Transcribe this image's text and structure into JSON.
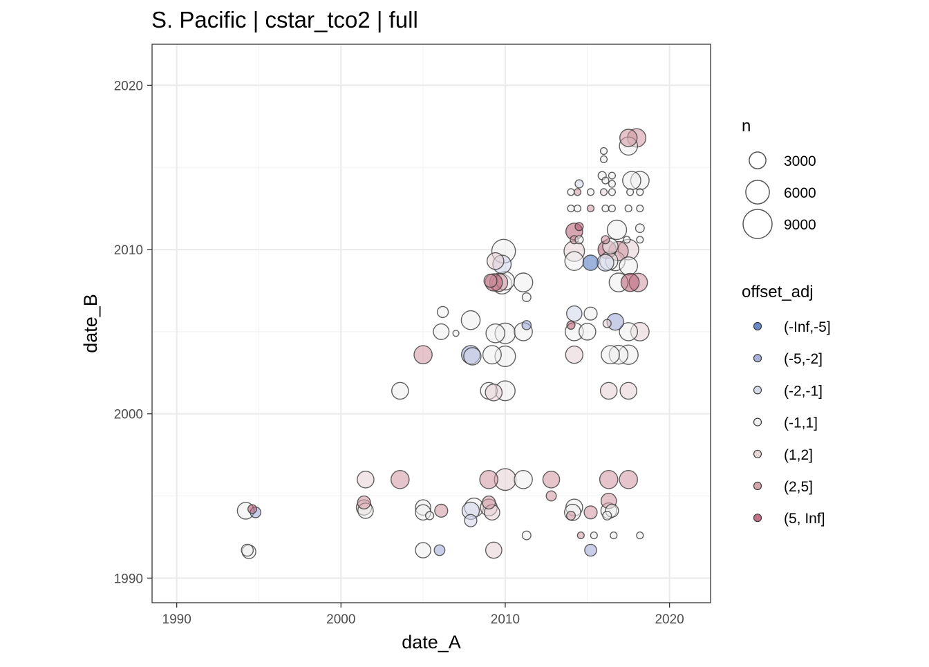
{
  "chart_data": {
    "type": "scatter",
    "title": "S. Pacific | cstar_tco2 | full",
    "xlabel": "date_A",
    "ylabel": "date_B",
    "xlim": [
      1988.5,
      2022.5
    ],
    "ylim": [
      1988.5,
      2022.5
    ],
    "xticks": [
      "1990",
      "2000",
      "2010",
      "2020"
    ],
    "yticks": [
      "1990",
      "2000",
      "2010",
      "2020"
    ],
    "grid": true,
    "size_legend": {
      "title": "n",
      "entries": [
        {
          "label": "3000",
          "value": 3000
        },
        {
          "label": "6000",
          "value": 6000
        },
        {
          "label": "9000",
          "value": 9000
        }
      ]
    },
    "color_legend": {
      "title": "offset_adj",
      "entries": [
        {
          "label": "(-Inf,-5]",
          "color": "#4f74c0"
        },
        {
          "label": "(-5,-2]",
          "color": "#9aa5d3"
        },
        {
          "label": "(-2,-1]",
          "color": "#d0d4e8"
        },
        {
          "label": "(-1,1]",
          "color": "#eeeeee"
        },
        {
          "label": "(1,2]",
          "color": "#e6d0d4"
        },
        {
          "label": "(2,5]",
          "color": "#cf96a1"
        },
        {
          "label": "(5, Inf]",
          "color": "#b75b72"
        }
      ]
    },
    "points": [
      [
        1994.3,
        1991.7,
        1500,
        3
      ],
      [
        1994.4,
        1991.6,
        2000,
        3
      ],
      [
        1994.2,
        1994.1,
        3000,
        3
      ],
      [
        1994.6,
        1994.2,
        800,
        6
      ],
      [
        1994.8,
        1994.0,
        1200,
        1
      ],
      [
        2001.5,
        1996.0,
        3000,
        4
      ],
      [
        2001.4,
        1994.6,
        1800,
        5
      ],
      [
        2001.4,
        1994.3,
        2500,
        4
      ],
      [
        2001.5,
        1994.1,
        2500,
        3
      ],
      [
        2003.6,
        1996.0,
        3500,
        5
      ],
      [
        2003.6,
        2001.4,
        3000,
        3
      ],
      [
        2005.0,
        2003.6,
        3500,
        5
      ],
      [
        2005.0,
        1994.3,
        2500,
        3
      ],
      [
        2005.0,
        1994.0,
        2500,
        3
      ],
      [
        2005.4,
        1993.8,
        700,
        3
      ],
      [
        2005.0,
        1991.7,
        2500,
        3
      ],
      [
        2006.0,
        1991.7,
        1200,
        1
      ],
      [
        2006.1,
        1994.1,
        1800,
        5
      ],
      [
        2006.2,
        2006.2,
        1300,
        3
      ],
      [
        2006.1,
        2005.0,
        2600,
        3
      ],
      [
        2007.0,
        2004.9,
        400,
        3
      ],
      [
        2007.9,
        2005.7,
        3800,
        3
      ],
      [
        2007.9,
        2003.6,
        3600,
        1
      ],
      [
        2008.0,
        2003.5,
        3200,
        2
      ],
      [
        2007.9,
        1994.1,
        3200,
        2
      ],
      [
        2008.1,
        1994.3,
        3800,
        3
      ],
      [
        2007.9,
        1993.5,
        1600,
        2
      ],
      [
        2009.0,
        1996.0,
        3500,
        5
      ],
      [
        2009.0,
        1994.6,
        1800,
        5
      ],
      [
        2009.0,
        1994.3,
        3000,
        4
      ],
      [
        2009.2,
        1994.0,
        2500,
        4
      ],
      [
        2009.3,
        1991.7,
        2800,
        4
      ],
      [
        2009.0,
        2001.4,
        3000,
        3
      ],
      [
        2009.3,
        2001.3,
        3000,
        4
      ],
      [
        2009.2,
        2003.6,
        3600,
        3
      ],
      [
        2009.4,
        2004.9,
        3800,
        3
      ],
      [
        2009.4,
        2009.3,
        3000,
        4
      ],
      [
        2009.1,
        2008.1,
        1800,
        5
      ],
      [
        2009.3,
        2008.0,
        3200,
        6
      ],
      [
        2009.6,
        2008.0,
        3500,
        5
      ],
      [
        2009.8,
        2007.9,
        4200,
        3
      ],
      [
        2010.0,
        2008.1,
        3600,
        3
      ],
      [
        2009.8,
        2009.1,
        3600,
        2
      ],
      [
        2009.9,
        2009.9,
        6000,
        3
      ],
      [
        2010.0,
        2003.5,
        4500,
        3
      ],
      [
        2010.0,
        2004.9,
        4500,
        3
      ],
      [
        2010.0,
        2001.4,
        4200,
        3
      ],
      [
        2010.0,
        1996.0,
        5000,
        4
      ],
      [
        2011.1,
        1996.0,
        3500,
        3
      ],
      [
        2011.1,
        2008.0,
        3800,
        3
      ],
      [
        2011.3,
        2007.1,
        800,
        3
      ],
      [
        2011.1,
        2005.0,
        3500,
        3
      ],
      [
        2011.3,
        2005.4,
        900,
        1
      ],
      [
        2011.3,
        1992.6,
        800,
        3
      ],
      [
        2012.8,
        1996.0,
        3000,
        5
      ],
      [
        2012.8,
        1995.0,
        1100,
        5
      ],
      [
        2014.0,
        2013.5,
        500,
        3
      ],
      [
        2014.4,
        2013.5,
        500,
        5
      ],
      [
        2014.5,
        2014.0,
        700,
        2
      ],
      [
        2014.0,
        2012.5,
        500,
        3
      ],
      [
        2014.4,
        2012.5,
        500,
        3
      ],
      [
        2014.2,
        2011.1,
        3000,
        6
      ],
      [
        2014.5,
        2011.4,
        700,
        6
      ],
      [
        2014.2,
        2010.6,
        700,
        5
      ],
      [
        2014.5,
        2010.6,
        700,
        3
      ],
      [
        2014.2,
        2009.9,
        4500,
        4
      ],
      [
        2014.2,
        2009.3,
        3800,
        3
      ],
      [
        2015.2,
        2009.2,
        2500,
        0
      ],
      [
        2014.2,
        2006.1,
        2500,
        2
      ],
      [
        2014.0,
        2005.4,
        700,
        6
      ],
      [
        2014.2,
        2005.0,
        3500,
        3
      ],
      [
        2014.2,
        2003.6,
        3200,
        4
      ],
      [
        2014.2,
        1994.3,
        3000,
        3
      ],
      [
        2014.1,
        1994.0,
        2800,
        3
      ],
      [
        2014.0,
        1993.8,
        800,
        5
      ],
      [
        2014.6,
        1992.6,
        500,
        5
      ],
      [
        2015.2,
        2006.1,
        1800,
        3
      ],
      [
        2015.0,
        2005.0,
        3000,
        3
      ],
      [
        2015.2,
        2012.5,
        500,
        5
      ],
      [
        2015.2,
        2013.5,
        500,
        3
      ],
      [
        2015.2,
        1994.0,
        1800,
        5
      ],
      [
        2015.2,
        1991.7,
        1500,
        1
      ],
      [
        2015.4,
        1992.6,
        500,
        3
      ],
      [
        2016.0,
        2016.0,
        500,
        3
      ],
      [
        2016.0,
        2015.5,
        500,
        3
      ],
      [
        2015.9,
        2014.5,
        700,
        3
      ],
      [
        2016.1,
        2014.2,
        500,
        3
      ],
      [
        2016.0,
        2013.5,
        500,
        4
      ],
      [
        2016.1,
        2012.5,
        500,
        3
      ],
      [
        2016.1,
        2010.6,
        700,
        5
      ],
      [
        2016.2,
        2010.0,
        3500,
        6
      ],
      [
        2016.1,
        2009.2,
        3000,
        2
      ],
      [
        2016.3,
        2009.3,
        3500,
        3
      ],
      [
        2016.2,
        2005.5,
        700,
        4
      ],
      [
        2016.4,
        2003.6,
        3500,
        3
      ],
      [
        2016.3,
        2001.4,
        3000,
        4
      ],
      [
        2016.3,
        1996.0,
        3500,
        5
      ],
      [
        2016.3,
        1994.7,
        2500,
        5
      ],
      [
        2016.3,
        1994.1,
        2600,
        3
      ],
      [
        2016.2,
        1993.8,
        800,
        3
      ],
      [
        2016.5,
        1994.1,
        1800,
        3
      ],
      [
        2016.5,
        2012.5,
        500,
        3
      ],
      [
        2016.5,
        2013.5,
        500,
        3
      ],
      [
        2016.5,
        2014.5,
        500,
        3
      ],
      [
        2016.5,
        2014.0,
        500,
        3
      ],
      [
        2016.4,
        2010.2,
        2500,
        3
      ],
      [
        2016.6,
        1992.6,
        500,
        3
      ],
      [
        2016.8,
        2011.2,
        4000,
        3
      ],
      [
        2016.7,
        2009.3,
        4000,
        3
      ],
      [
        2016.7,
        2005.6,
        3000,
        1
      ],
      [
        2016.9,
        2003.6,
        3800,
        3
      ],
      [
        2016.9,
        2008.0,
        3800,
        3
      ],
      [
        2016.9,
        2009.9,
        4000,
        5
      ],
      [
        2017.5,
        2016.3,
        3500,
        3
      ],
      [
        2017.5,
        2016.8,
        3200,
        5
      ],
      [
        2017.7,
        2014.2,
        3500,
        3
      ],
      [
        2017.5,
        2012.5,
        500,
        3
      ],
      [
        2017.6,
        2013.5,
        500,
        3
      ],
      [
        2017.5,
        2010.0,
        4500,
        4
      ],
      [
        2017.5,
        2009.0,
        3500,
        3
      ],
      [
        2017.5,
        2005.0,
        3500,
        3
      ],
      [
        2017.5,
        2003.6,
        4000,
        3
      ],
      [
        2017.5,
        2001.4,
        3000,
        4
      ],
      [
        2017.5,
        1996.0,
        3500,
        5
      ],
      [
        2017.6,
        2008.0,
        3500,
        6
      ],
      [
        2017.4,
        2010.6,
        500,
        3
      ],
      [
        2018.0,
        2016.8,
        3600,
        5
      ],
      [
        2018.2,
        2014.2,
        3600,
        3
      ],
      [
        2018.2,
        2013.5,
        500,
        3
      ],
      [
        2018.2,
        2012.5,
        500,
        3
      ],
      [
        2018.2,
        2011.3,
        800,
        3
      ],
      [
        2018.2,
        2010.6,
        500,
        3
      ],
      [
        2018.1,
        2008.0,
        3600,
        5
      ],
      [
        2018.2,
        2005.0,
        3600,
        4
      ],
      [
        2018.2,
        1992.6,
        500,
        3
      ]
    ]
  }
}
